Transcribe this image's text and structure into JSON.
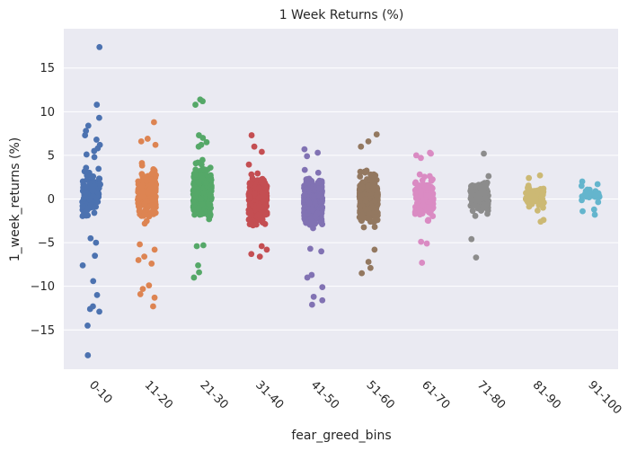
{
  "chart_data": {
    "type": "scatter",
    "subtype": "stripplot",
    "title": "1 Week Returns (%)",
    "xlabel": "fear_greed_bins",
    "ylabel": "1_week_returns (%)",
    "ylim": [
      -19.5,
      19.5
    ],
    "yticks": [
      -15,
      -10,
      -5,
      0,
      5,
      10,
      15
    ],
    "grid": true,
    "background": "#eaeaf2",
    "categories": [
      "0-10",
      "11-20",
      "21-30",
      "31-40",
      "41-50",
      "51-60",
      "61-70",
      "71-80",
      "81-90",
      "91-100"
    ],
    "series": [
      {
        "category": "0-10",
        "color": "#4c72b0",
        "summary": {
          "count": 120,
          "median": 0.5,
          "spread": 2.4,
          "min": -17.9,
          "max": 17.4
        },
        "outliers": [
          17.4,
          10.8,
          9.3,
          8.4,
          7.8,
          7.3,
          6.8,
          6.2,
          5.8,
          5.5,
          5.1,
          4.8,
          -4.5,
          -5.0,
          -6.5,
          -7.6,
          -9.4,
          -11.0,
          -12.3,
          -12.6,
          -12.9,
          -14.5,
          -17.9
        ]
      },
      {
        "category": "11-20",
        "color": "#dd8452",
        "summary": {
          "count": 260,
          "median": 0.6,
          "spread": 2.3,
          "min": -12.3,
          "max": 8.8
        },
        "outliers": [
          8.8,
          6.9,
          6.6,
          6.2,
          -5.2,
          -5.8,
          -6.6,
          -7.0,
          -7.4,
          -9.9,
          -10.3,
          -10.9,
          -11.3,
          -12.3
        ]
      },
      {
        "category": "21-30",
        "color": "#55a868",
        "summary": {
          "count": 300,
          "median": 0.8,
          "spread": 2.5,
          "min": -9.0,
          "max": 11.4
        },
        "outliers": [
          11.4,
          11.2,
          10.8,
          7.3,
          7.0,
          6.5,
          6.2,
          6.0,
          -5.3,
          -5.4,
          -7.6,
          -8.4,
          -9.0
        ]
      },
      {
        "category": "31-40",
        "color": "#c44e52",
        "summary": {
          "count": 380,
          "median": 0.0,
          "spread": 2.2,
          "min": -6.6,
          "max": 7.3
        },
        "outliers": [
          7.3,
          6.0,
          5.4,
          -5.4,
          -5.8,
          -6.3,
          -6.6
        ]
      },
      {
        "category": "41-50",
        "color": "#8172b3",
        "summary": {
          "count": 420,
          "median": -0.2,
          "spread": 2.4,
          "min": -12.1,
          "max": 5.7
        },
        "outliers": [
          5.7,
          5.3,
          4.9,
          -5.7,
          -6.0,
          -8.7,
          -9.0,
          -10.1,
          -11.2,
          -11.6,
          -12.1
        ]
      },
      {
        "category": "51-60",
        "color": "#937860",
        "summary": {
          "count": 420,
          "median": 0.0,
          "spread": 2.4,
          "min": -8.5,
          "max": 7.4
        },
        "outliers": [
          7.4,
          6.6,
          6.0,
          -5.8,
          -7.2,
          -7.9,
          -8.5
        ]
      },
      {
        "category": "61-70",
        "color": "#da8bc3",
        "summary": {
          "count": 220,
          "median": 0.2,
          "spread": 2.0,
          "min": -7.3,
          "max": 5.3
        },
        "outliers": [
          5.3,
          5.2,
          5.0,
          4.7,
          -4.9,
          -5.1,
          -7.3
        ]
      },
      {
        "category": "71-80",
        "color": "#8c8c8c",
        "summary": {
          "count": 150,
          "median": 0.3,
          "spread": 1.6,
          "min": -6.7,
          "max": 5.2
        },
        "outliers": [
          5.2,
          -4.6,
          -6.7
        ]
      },
      {
        "category": "81-90",
        "color": "#ccb974",
        "summary": {
          "count": 90,
          "median": 0.3,
          "spread": 1.1,
          "min": -2.6,
          "max": 2.7
        },
        "outliers": [
          2.7,
          2.4,
          -2.4,
          -2.6
        ]
      },
      {
        "category": "91-100",
        "color": "#64b5cd",
        "summary": {
          "count": 30,
          "median": 0.5,
          "spread": 0.7,
          "min": -1.8,
          "max": 2.0
        },
        "outliers": [
          2.0,
          1.7,
          1.5,
          -1.2,
          -1.4,
          -1.8
        ]
      }
    ]
  }
}
